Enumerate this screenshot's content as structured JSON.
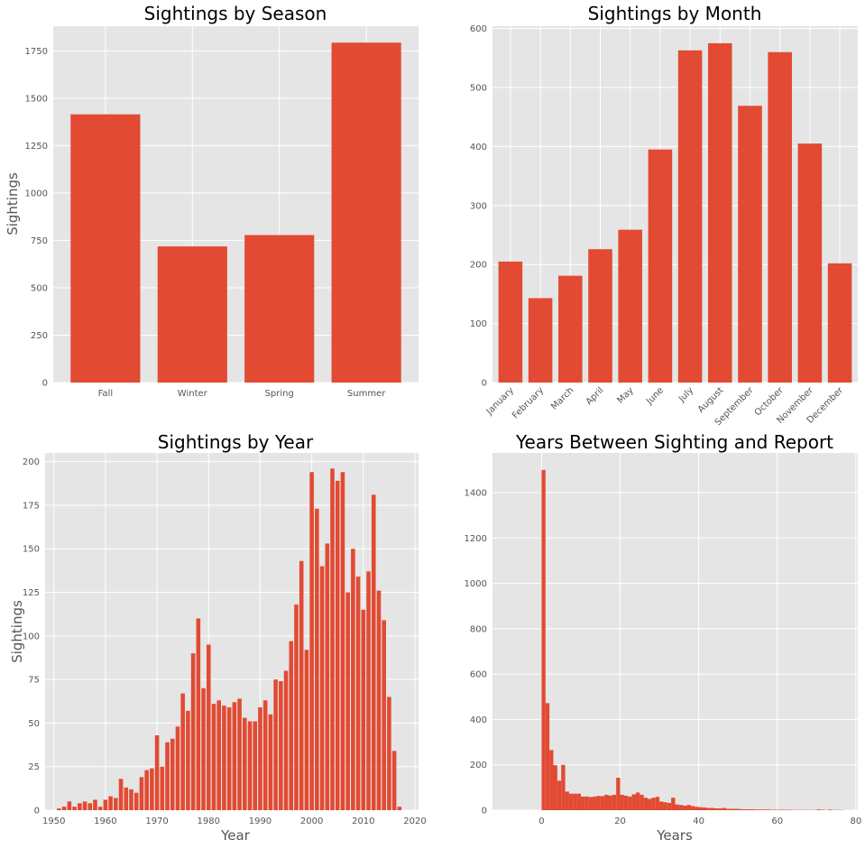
{
  "chart_data": [
    {
      "type": "bar",
      "title": "Sightings by Season",
      "xlabel": "",
      "ylabel": "Sightings",
      "categories": [
        "Fall",
        "Winter",
        "Spring",
        "Summer"
      ],
      "values": [
        1415,
        718,
        778,
        1793
      ],
      "ylim": [
        0,
        1880
      ],
      "yticks": [
        0,
        250,
        500,
        750,
        1000,
        1250,
        1500,
        1750
      ],
      "grid": true,
      "color": "#E24A33",
      "background": "#E5E5E5"
    },
    {
      "type": "bar",
      "title": "Sightings by Month",
      "xlabel": "",
      "ylabel": "",
      "categories": [
        "January",
        "February",
        "March",
        "April",
        "May",
        "June",
        "July",
        "August",
        "September",
        "October",
        "November",
        "December"
      ],
      "values": [
        205,
        143,
        181,
        226,
        259,
        395,
        563,
        575,
        469,
        560,
        405,
        202
      ],
      "ylim": [
        0,
        604
      ],
      "yticks": [
        0,
        100,
        200,
        300,
        400,
        500,
        600
      ],
      "tick_rotation": -45,
      "grid": true,
      "color": "#E24A33",
      "background": "#E5E5E5"
    },
    {
      "type": "bar",
      "title": "Sightings by Year",
      "xlabel": "Year",
      "ylabel": "Sightings",
      "x": [
        1951,
        1952,
        1953,
        1954,
        1955,
        1956,
        1957,
        1958,
        1959,
        1960,
        1961,
        1962,
        1963,
        1964,
        1965,
        1966,
        1967,
        1968,
        1969,
        1970,
        1971,
        1972,
        1973,
        1974,
        1975,
        1976,
        1977,
        1978,
        1979,
        1980,
        1981,
        1982,
        1983,
        1984,
        1985,
        1986,
        1987,
        1988,
        1989,
        1990,
        1991,
        1992,
        1993,
        1994,
        1995,
        1996,
        1997,
        1998,
        1999,
        2000,
        2001,
        2002,
        2003,
        2004,
        2005,
        2006,
        2007,
        2008,
        2009,
        2010,
        2011,
        2012,
        2013,
        2014,
        2015,
        2016,
        2017
      ],
      "values": [
        1,
        2,
        5,
        2,
        4,
        5,
        4,
        6,
        2,
        6,
        8,
        7,
        18,
        13,
        12,
        10,
        19,
        23,
        24,
        43,
        25,
        39,
        41,
        48,
        67,
        57,
        90,
        110,
        70,
        95,
        61,
        63,
        60,
        59,
        62,
        64,
        53,
        51,
        51,
        59,
        63,
        55,
        75,
        74,
        80,
        97,
        118,
        143,
        92,
        194,
        173,
        140,
        153,
        196,
        189,
        194,
        125,
        150,
        134,
        115,
        137,
        181,
        126,
        109,
        65,
        34,
        2
      ],
      "xlim": [
        1948.3,
        2020.7
      ],
      "xticks": [
        1950,
        1960,
        1970,
        1980,
        1990,
        2000,
        2010,
        2020
      ],
      "ylim": [
        0,
        205
      ],
      "yticks": [
        0,
        25,
        50,
        75,
        100,
        125,
        150,
        175,
        200
      ],
      "grid": true,
      "color": "#E24A33",
      "background": "#E5E5E5"
    },
    {
      "type": "histogram",
      "title": "Years Between Sighting and Report",
      "xlabel": "Years",
      "ylabel": "",
      "bin_width": 1,
      "bin_starts": [
        0,
        1,
        2,
        3,
        4,
        5,
        6,
        7,
        8,
        9,
        10,
        11,
        12,
        13,
        14,
        15,
        16,
        17,
        18,
        19,
        20,
        21,
        22,
        23,
        24,
        25,
        26,
        27,
        28,
        29,
        30,
        31,
        32,
        33,
        34,
        35,
        36,
        37,
        38,
        39,
        40,
        41,
        42,
        43,
        44,
        45,
        46,
        47,
        48,
        49,
        50,
        51,
        52,
        53,
        54,
        55,
        56,
        57,
        58,
        59,
        60,
        61,
        62,
        63,
        64,
        65,
        66,
        67,
        68,
        69,
        70,
        71,
        72,
        73,
        74,
        75,
        76,
        77
      ],
      "values": [
        1500,
        472,
        265,
        198,
        130,
        200,
        82,
        73,
        73,
        73,
        60,
        60,
        58,
        60,
        63,
        62,
        68,
        65,
        68,
        143,
        68,
        64,
        60,
        70,
        78,
        68,
        55,
        50,
        55,
        59,
        38,
        35,
        32,
        55,
        25,
        23,
        20,
        23,
        18,
        15,
        13,
        12,
        10,
        10,
        8,
        8,
        10,
        6,
        6,
        6,
        5,
        4,
        4,
        4,
        3,
        3,
        3,
        3,
        2,
        2,
        2,
        2,
        2,
        2,
        1,
        1,
        1,
        1,
        1,
        1,
        3,
        2,
        1,
        3,
        1,
        1,
        1,
        0
      ],
      "xlim": [
        -12.5,
        80.5
      ],
      "xticks": [
        0,
        20,
        40,
        60,
        80
      ],
      "ylim": [
        0,
        1575
      ],
      "yticks": [
        0,
        200,
        400,
        600,
        800,
        1000,
        1200,
        1400
      ],
      "grid": true,
      "color": "#E24A33",
      "background": "#E5E5E5"
    }
  ]
}
